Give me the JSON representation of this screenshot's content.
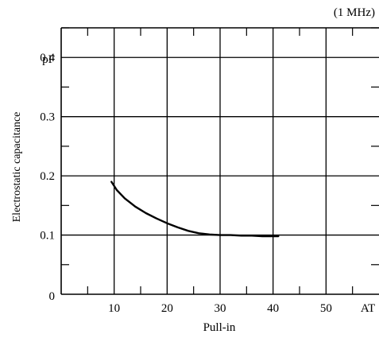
{
  "chart_data": {
    "type": "line",
    "note": "(1 MHz)",
    "xlabel": "Pull-in",
    "ylabel": "Electrostatic capacitance",
    "x_unit": "AT",
    "y_unit": "pF",
    "xlim": [
      0,
      60
    ],
    "ylim": [
      0,
      0.45
    ],
    "x_tick_labels": [
      "10",
      "20",
      "30",
      "40",
      "50"
    ],
    "x_tick_values": [
      10,
      20,
      30,
      40,
      50
    ],
    "y_tick_labels": [
      "0",
      "0.1",
      "0.2",
      "0.3",
      "0.4"
    ],
    "y_tick_values": [
      0,
      0.1,
      0.2,
      0.3,
      0.4
    ],
    "x_origin_label": "0",
    "grid": true,
    "series": [
      {
        "x": [
          9.5,
          10.5,
          12,
          14,
          16,
          18,
          20,
          22,
          24,
          26,
          28,
          30,
          32,
          34,
          36,
          38,
          40,
          41
        ],
        "y": [
          0.19,
          0.176,
          0.162,
          0.148,
          0.137,
          0.128,
          0.12,
          0.113,
          0.107,
          0.103,
          0.101,
          0.1,
          0.1,
          0.099,
          0.099,
          0.098,
          0.098,
          0.098
        ]
      }
    ]
  }
}
